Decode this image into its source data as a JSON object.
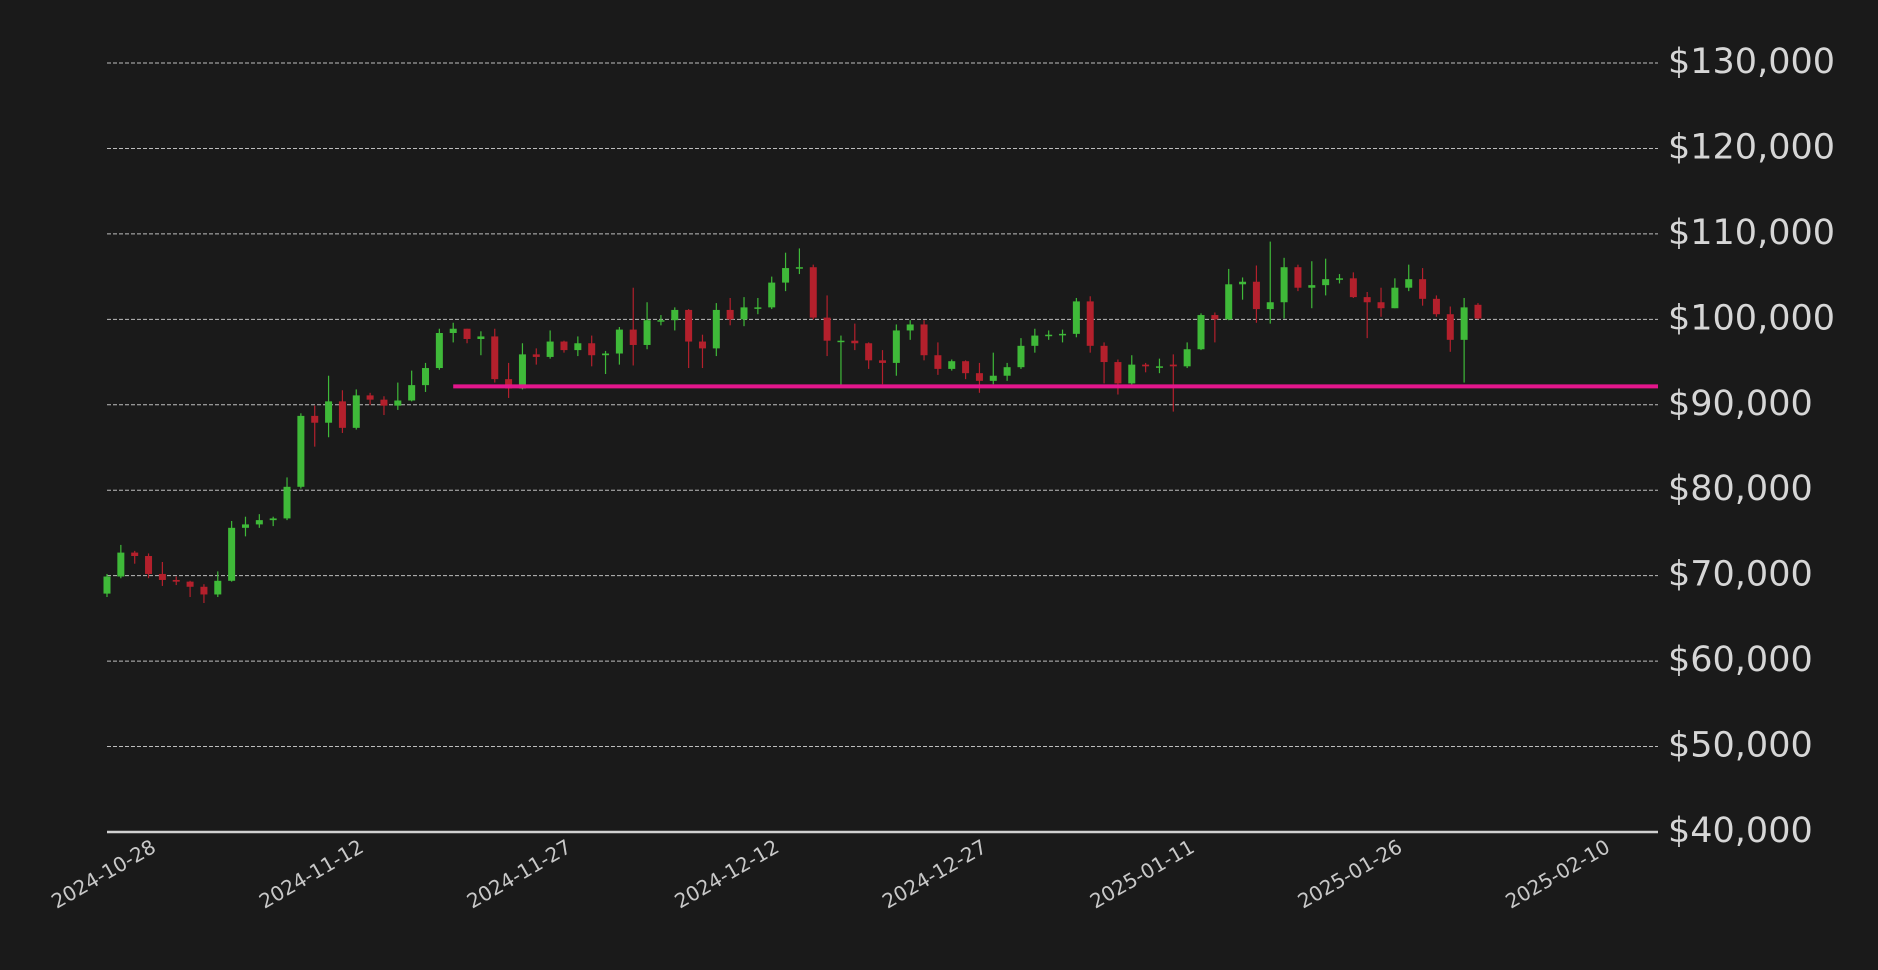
{
  "chart_data": {
    "type": "candlestick",
    "x": [
      "2024-10-28",
      "2024-10-29",
      "2024-10-30",
      "2024-10-31",
      "2024-11-01",
      "2024-11-02",
      "2024-11-03",
      "2024-11-04",
      "2024-11-05",
      "2024-11-06",
      "2024-11-07",
      "2024-11-08",
      "2024-11-09",
      "2024-11-10",
      "2024-11-11",
      "2024-11-12",
      "2024-11-13",
      "2024-11-14",
      "2024-11-15",
      "2024-11-16",
      "2024-11-17",
      "2024-11-18",
      "2024-11-19",
      "2024-11-20",
      "2024-11-21",
      "2024-11-22",
      "2024-11-23",
      "2024-11-24",
      "2024-11-25",
      "2024-11-26",
      "2024-11-27",
      "2024-11-28",
      "2024-11-29",
      "2024-11-30",
      "2024-12-01",
      "2024-12-02",
      "2024-12-03",
      "2024-12-04",
      "2024-12-05",
      "2024-12-06",
      "2024-12-07",
      "2024-12-08",
      "2024-12-09",
      "2024-12-10",
      "2024-12-11",
      "2024-12-12",
      "2024-12-13",
      "2024-12-14",
      "2024-12-15",
      "2024-12-16",
      "2024-12-17",
      "2024-12-18",
      "2024-12-19",
      "2024-12-20",
      "2024-12-21",
      "2024-12-22",
      "2024-12-23",
      "2024-12-24",
      "2024-12-25",
      "2024-12-26",
      "2024-12-27",
      "2024-12-28",
      "2024-12-29",
      "2024-12-30",
      "2024-12-31",
      "2025-01-01",
      "2025-01-02",
      "2025-01-03",
      "2025-01-04",
      "2025-01-05",
      "2025-01-06",
      "2025-01-07",
      "2025-01-08",
      "2025-01-09",
      "2025-01-10",
      "2025-01-11",
      "2025-01-12",
      "2025-01-13",
      "2025-01-14",
      "2025-01-15",
      "2025-01-16",
      "2025-01-17",
      "2025-01-18",
      "2025-01-19",
      "2025-01-20",
      "2025-01-21",
      "2025-01-22",
      "2025-01-23",
      "2025-01-24",
      "2025-01-25",
      "2025-01-26",
      "2025-01-27",
      "2025-01-28",
      "2025-01-29",
      "2025-01-30",
      "2025-01-31",
      "2025-02-01",
      "2025-02-02",
      "2025-02-03",
      "2025-02-04"
    ],
    "open": [
      67900,
      69900,
      72700,
      72300,
      70200,
      69500,
      69300,
      68700,
      67800,
      69400,
      75600,
      76000,
      76500,
      76700,
      80400,
      88700,
      87900,
      90400,
      87300,
      91100,
      90600,
      89900,
      90500,
      92300,
      94300,
      98400,
      98900,
      97700,
      98000,
      93000,
      91900,
      95900,
      95600,
      97400,
      96400,
      97200,
      95800,
      96000,
      98800,
      97000,
      99900,
      99900,
      101100,
      97400,
      96600,
      101100,
      100000,
      101400,
      101400,
      104300,
      106000,
      106100,
      100200,
      97500,
      97500,
      97200,
      95200,
      94900,
      98700,
      99400,
      95800,
      94200,
      95100,
      93700,
      92800,
      93400,
      94400,
      96900,
      98100,
      98200,
      98300,
      102100,
      96900,
      95000,
      92500,
      94700,
      94500,
      94700,
      94500,
      96500,
      100500,
      100000,
      104100,
      104400,
      101200,
      102000,
      106100,
      103700,
      104000,
      104700,
      104800,
      102600,
      102000,
      101300,
      103700,
      104700,
      102400,
      100600,
      97600,
      101700
    ],
    "high": [
      70200,
      73600,
      72900,
      72600,
      71600,
      69900,
      69400,
      69000,
      70500,
      76400,
      76900,
      77200,
      76900,
      81500,
      89000,
      89900,
      93400,
      91700,
      91800,
      91400,
      91000,
      92600,
      94000,
      94900,
      98900,
      99600,
      98900,
      98600,
      98900,
      94900,
      97200,
      96600,
      98700,
      97500,
      98000,
      98100,
      96300,
      99100,
      103700,
      102000,
      100500,
      101400,
      101200,
      98200,
      101900,
      102500,
      102600,
      102500,
      105000,
      107800,
      108300,
      106400,
      102800,
      98100,
      99500,
      97300,
      96400,
      99400,
      99900,
      99900,
      97300,
      95300,
      95200,
      94900,
      96100,
      94900,
      97800,
      98900,
      98700,
      98800,
      102500,
      102700,
      97300,
      95300,
      95800,
      94900,
      95400,
      95900,
      97300,
      100700,
      100800,
      105900,
      104900,
      106300,
      109100,
      107200,
      106400,
      106800,
      107100,
      105300,
      105500,
      103200,
      103700,
      104800,
      106400,
      106000,
      102800,
      101500,
      102500,
      101900
    ],
    "low": [
      67500,
      69700,
      71400,
      69700,
      68800,
      68900,
      67500,
      66800,
      67500,
      69300,
      74600,
      75600,
      75800,
      76500,
      80200,
      85100,
      86200,
      86700,
      87100,
      90000,
      88800,
      89400,
      90400,
      91500,
      94100,
      97300,
      97200,
      95800,
      92600,
      90800,
      91800,
      94700,
      95400,
      96100,
      95700,
      94500,
      93600,
      94700,
      94600,
      96500,
      99300,
      98700,
      94300,
      94300,
      95700,
      99300,
      99200,
      100600,
      101200,
      103300,
      105300,
      100000,
      95700,
      92100,
      96400,
      94200,
      92400,
      93400,
      97600,
      95200,
      93500,
      94000,
      93000,
      91400,
      92400,
      92800,
      94200,
      96100,
      97600,
      97300,
      97900,
      96100,
      92500,
      91200,
      92200,
      93800,
      93700,
      89200,
      94300,
      96400,
      97300,
      99900,
      102300,
      99600,
      99500,
      100100,
      103300,
      101300,
      102800,
      104200,
      102500,
      97800,
      100300,
      101300,
      103300,
      101600,
      100300,
      96200,
      92600,
      100000
    ],
    "close": [
      69900,
      72700,
      72300,
      70200,
      69500,
      69300,
      68700,
      67800,
      69400,
      75600,
      76000,
      76500,
      76700,
      80400,
      88700,
      87900,
      90400,
      87300,
      91100,
      90600,
      89900,
      90500,
      92300,
      94300,
      98400,
      98900,
      97700,
      98000,
      93000,
      91900,
      95900,
      95600,
      97400,
      96400,
      97200,
      95800,
      96000,
      98800,
      97000,
      99900,
      99900,
      101100,
      97400,
      96600,
      101100,
      100000,
      101400,
      101400,
      104300,
      106000,
      106100,
      100200,
      97500,
      97500,
      97200,
      95200,
      94900,
      98700,
      99400,
      95800,
      94200,
      95100,
      93700,
      92800,
      93400,
      94400,
      96900,
      98100,
      98200,
      98300,
      102100,
      96900,
      95000,
      92500,
      94700,
      94500,
      94500,
      94500,
      96500,
      100500,
      100000,
      104100,
      104400,
      101200,
      102000,
      106100,
      103700,
      104000,
      104700,
      104800,
      102600,
      102000,
      101300,
      103700,
      104700,
      102400,
      100600,
      97600,
      101400,
      100100
    ],
    "up_color": "#3fb939",
    "down_color": "#b3202c",
    "xlim": [
      "2024-10-28",
      "2025-02-17"
    ],
    "xticks": [
      "2024-10-28",
      "2024-11-12",
      "2024-11-27",
      "2024-12-12",
      "2024-12-27",
      "2025-01-11",
      "2025-01-26",
      "2025-02-10"
    ],
    "ylim": [
      40000,
      130000
    ],
    "yticks": [
      {
        "value": 40000,
        "label": "$40,000"
      },
      {
        "value": 50000,
        "label": "$50,000"
      },
      {
        "value": 60000,
        "label": "$60,000"
      },
      {
        "value": 70000,
        "label": "$70,000"
      },
      {
        "value": 80000,
        "label": "$80,000"
      },
      {
        "value": 90000,
        "label": "$90,000"
      },
      {
        "value": 100000,
        "label": "$100,000"
      },
      {
        "value": 110000,
        "label": "$110,000"
      },
      {
        "value": 120000,
        "label": "$120,000"
      },
      {
        "value": 130000,
        "label": "$130,000"
      }
    ],
    "grid": true,
    "hline": {
      "value": 92150,
      "start": "2024-11-22",
      "color": "#e4168c"
    }
  }
}
